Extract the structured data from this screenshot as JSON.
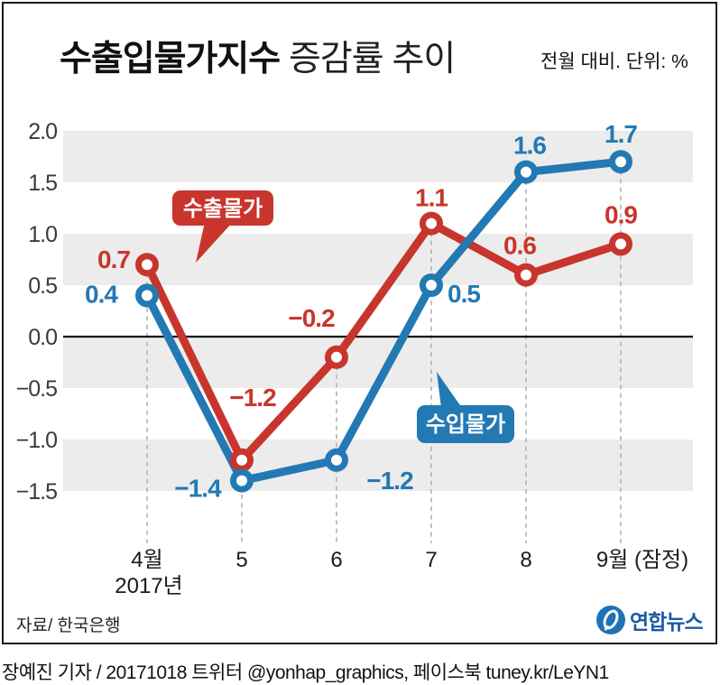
{
  "title": {
    "main_bold": "수출입물가지수",
    "main_regular": " 증감률 추이",
    "subtitle": "전월 대비. 단위: %"
  },
  "chart_data": {
    "type": "line",
    "categories": [
      "4월",
      "5",
      "6",
      "7",
      "8",
      "9월 (잠정)"
    ],
    "x_sub_label": "2017년",
    "y_ticks": [
      "2.0",
      "1.5",
      "1.0",
      "0.5",
      "0.0",
      "−0.5",
      "−1.0",
      "−1.5"
    ],
    "ylim": [
      -1.5,
      2.0
    ],
    "baseline": 0,
    "unit": "%",
    "grid": "alternating-bands",
    "legend_position": "callouts-on-chart",
    "series": [
      {
        "name": "수출물가",
        "color": "#c8352c",
        "values": [
          0.7,
          -1.2,
          -0.2,
          1.1,
          0.6,
          0.9
        ]
      },
      {
        "name": "수입물가",
        "color": "#2379b3",
        "values": [
          0.4,
          -1.4,
          -1.2,
          0.5,
          1.6,
          1.7
        ]
      }
    ]
  },
  "annotations": {
    "export_label": "수출물가",
    "import_label": "수입물가"
  },
  "colors": {
    "band_gray": "#ececec",
    "dashed_gridline": "#b3b3b3",
    "zero_line": "#111111",
    "logo_blue": "#1e73b8",
    "logo_text_blue": "#1d5aa6"
  },
  "source": "자료/ 한국은행",
  "logo": {
    "text": "연합뉴스"
  },
  "credit": "장예진 기자 / 20171018 트위터 @yonhap_graphics, 페이스북 tuney.kr/LeYN1"
}
